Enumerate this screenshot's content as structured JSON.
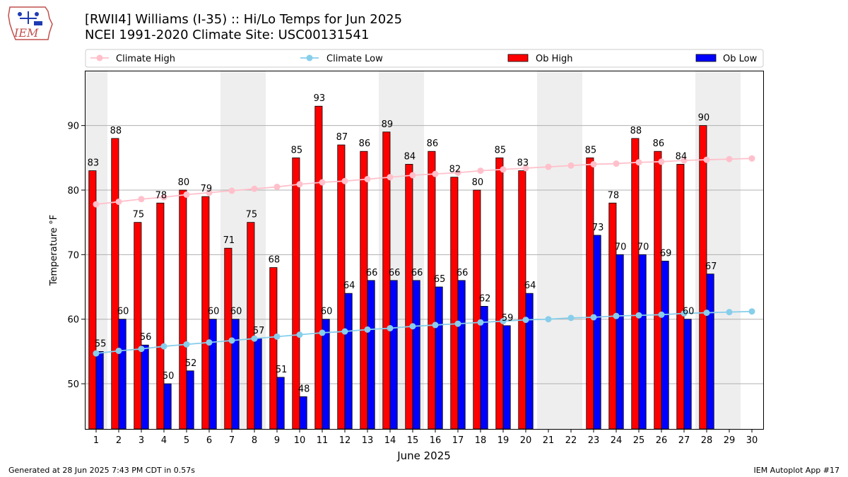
{
  "header": {
    "title_line1": "[RWII4] Williams (I-35) :: Hi/Lo Temps for Jun 2025",
    "title_line2": "NCEI 1991-2020 Climate Site: USC00131541",
    "logo_text": "IEM"
  },
  "footer": {
    "generated": "Generated at 28 Jun 2025 7:43 PM CDT in 0.57s",
    "app": "IEM Autoplot App #17"
  },
  "colors": {
    "ob_high": "#ff0000",
    "ob_low": "#0000ff",
    "climate_high": "#ffc0cb",
    "climate_low": "#87ceeb",
    "weekend_shade": "#eeeeee",
    "grid": "#b0b0b0"
  },
  "chart_data": {
    "type": "bar",
    "xlabel": "June 2025",
    "ylabel": "Temperature °F",
    "xlim": [
      0.5,
      30.5
    ],
    "ylim": [
      43,
      98.5
    ],
    "yticks": [
      50,
      60,
      70,
      80,
      90
    ],
    "grid": "horizontal",
    "legend_position": "top",
    "weekend_shading": [
      [
        0.5,
        1.5
      ],
      [
        6.5,
        8.5
      ],
      [
        13.5,
        15.5
      ],
      [
        20.5,
        22.5
      ],
      [
        27.5,
        29.5
      ]
    ],
    "categories": [
      "1",
      "2",
      "3",
      "4",
      "5",
      "6",
      "7",
      "8",
      "9",
      "10",
      "11",
      "12",
      "13",
      "14",
      "15",
      "16",
      "17",
      "18",
      "19",
      "20",
      "21",
      "22",
      "23",
      "24",
      "25",
      "26",
      "27",
      "28",
      "29",
      "30"
    ],
    "series": [
      {
        "name": "Ob High",
        "kind": "bar",
        "values": [
          83,
          88,
          75,
          78,
          80,
          79,
          71,
          75,
          68,
          85,
          93,
          87,
          86,
          89,
          84,
          86,
          82,
          80,
          85,
          83,
          null,
          null,
          85,
          78,
          88,
          86,
          84,
          90,
          null,
          null
        ]
      },
      {
        "name": "Ob Low",
        "kind": "bar",
        "values": [
          55,
          60,
          56,
          50,
          52,
          60,
          60,
          57,
          51,
          48,
          60,
          64,
          66,
          66,
          66,
          65,
          66,
          62,
          59,
          64,
          null,
          null,
          73,
          70,
          70,
          69,
          60,
          67,
          null,
          null
        ]
      },
      {
        "name": "Climate High",
        "kind": "line",
        "values": [
          77.8,
          78.2,
          78.6,
          78.9,
          79.3,
          79.6,
          79.9,
          80.2,
          80.5,
          80.9,
          81.2,
          81.4,
          81.7,
          82.0,
          82.3,
          82.5,
          82.7,
          83.0,
          83.2,
          83.4,
          83.6,
          83.8,
          84.0,
          84.1,
          84.3,
          84.4,
          84.6,
          84.7,
          84.8,
          84.9
        ]
      },
      {
        "name": "Climate Low",
        "kind": "line",
        "values": [
          54.7,
          55.1,
          55.4,
          55.8,
          56.1,
          56.4,
          56.7,
          57.0,
          57.3,
          57.6,
          57.9,
          58.1,
          58.4,
          58.6,
          58.9,
          59.1,
          59.3,
          59.5,
          59.7,
          59.9,
          60.0,
          60.2,
          60.3,
          60.5,
          60.6,
          60.7,
          60.9,
          61.0,
          61.1,
          61.2
        ]
      }
    ]
  }
}
